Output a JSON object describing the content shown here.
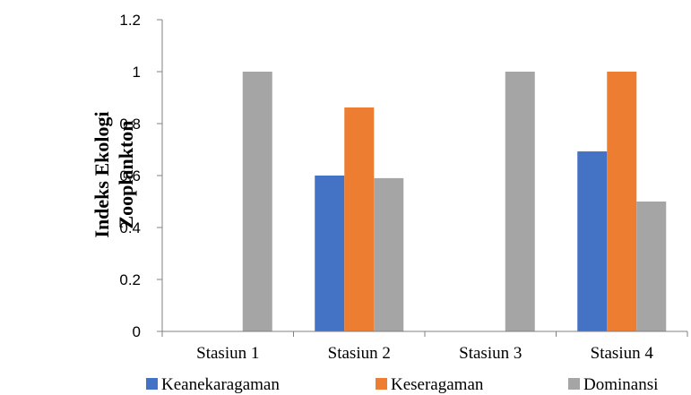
{
  "chart_data": {
    "type": "bar",
    "title": "",
    "xlabel": "",
    "ylabel_lines": [
      "Indeks Ekologi",
      "Zooplankton"
    ],
    "categories": [
      "Stasiun 1",
      "Stasiun 2",
      "Stasiun 3",
      "Stasiun 4"
    ],
    "series": [
      {
        "name": "Keanekaragaman",
        "color": "#4472C4",
        "values": [
          0,
          0.6,
          0,
          0.693
        ]
      },
      {
        "name": "Keseragaman",
        "color": "#ED7D31",
        "values": [
          0,
          0.862,
          0,
          1.0
        ]
      },
      {
        "name": "Dominansi",
        "color": "#A5A5A5",
        "values": [
          1.0,
          0.59,
          1.0,
          0.5
        ]
      }
    ],
    "ylim": [
      0,
      1.2
    ],
    "yticks": [
      0,
      0.2,
      0.4,
      0.6,
      0.8,
      1,
      1.2
    ],
    "grid": false,
    "legend_position": "bottom"
  }
}
